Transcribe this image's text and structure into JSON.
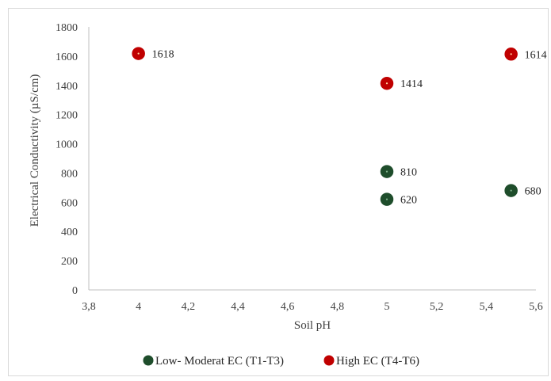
{
  "chart_data": {
    "type": "scatter",
    "title": "",
    "xlabel": "Soil pH",
    "ylabel": "Electrical Conductivity (µS/cm)",
    "xlim": [
      3.8,
      5.6
    ],
    "ylim": [
      0,
      1800
    ],
    "x_ticks": [
      "3,8",
      "4",
      "4,2",
      "4,4",
      "4,6",
      "4,8",
      "5",
      "5,2",
      "5,4",
      "5,6"
    ],
    "y_ticks": [
      "0",
      "200",
      "400",
      "600",
      "800",
      "1000",
      "1200",
      "1400",
      "1600",
      "1800"
    ],
    "grid": false,
    "legend_position": "bottom",
    "series": [
      {
        "name": "Low- Moderat EC (T1-T3)",
        "color": "#1e4d2b",
        "points": [
          {
            "x": 5.0,
            "y": 810,
            "label": "810"
          },
          {
            "x": 5.0,
            "y": 620,
            "label": "620"
          },
          {
            "x": 5.5,
            "y": 680,
            "label": "680"
          }
        ]
      },
      {
        "name": "High EC (T4-T6)",
        "color": "#c00000",
        "points": [
          {
            "x": 4.0,
            "y": 1618,
            "label": "1618"
          },
          {
            "x": 5.0,
            "y": 1414,
            "label": "1414"
          },
          {
            "x": 5.5,
            "y": 1614,
            "label": "1614"
          }
        ]
      }
    ]
  }
}
